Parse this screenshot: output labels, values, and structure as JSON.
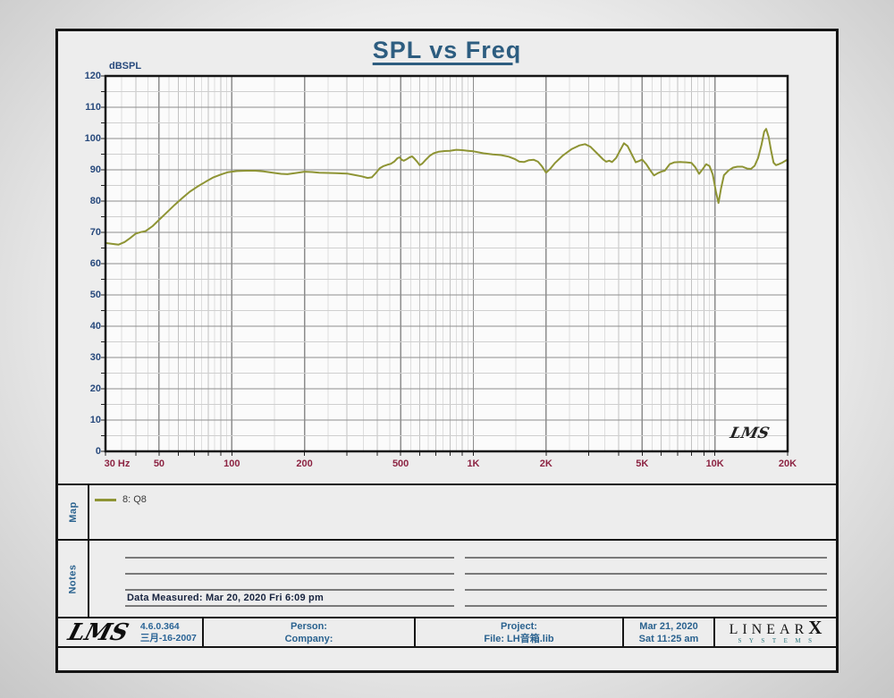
{
  "chart_data": {
    "type": "line",
    "title": "SPL vs Freq",
    "ylabel": "dBSPL",
    "x_unit": "Hz",
    "x_scale": "log",
    "xlim": [
      30,
      20000
    ],
    "ylim": [
      0,
      120
    ],
    "grid": "on",
    "yticks": [
      120,
      110,
      100,
      90,
      80,
      70,
      60,
      50,
      40,
      30,
      20,
      10,
      0
    ],
    "xticks": [
      {
        "f": 30,
        "label": "30 Hz",
        "dx": 13
      },
      {
        "f": 50,
        "label": "50"
      },
      {
        "f": 100,
        "label": "100"
      },
      {
        "f": 200,
        "label": "200"
      },
      {
        "f": 500,
        "label": "500"
      },
      {
        "f": 1000,
        "label": "1K"
      },
      {
        "f": 2000,
        "label": "2K"
      },
      {
        "f": 5000,
        "label": "5K"
      },
      {
        "f": 10000,
        "label": "10K"
      },
      {
        "f": 20000,
        "label": "20K"
      }
    ],
    "signature": "LMS",
    "series": [
      {
        "name": "8: Q8",
        "color": "#8e9434",
        "points": [
          [
            30,
            66.6
          ],
          [
            32,
            66.3
          ],
          [
            34,
            66.1
          ],
          [
            36,
            66.9
          ],
          [
            38,
            68.2
          ],
          [
            40,
            69.6
          ],
          [
            42,
            70.1
          ],
          [
            44,
            70.4
          ],
          [
            47,
            72.0
          ],
          [
            50,
            74.0
          ],
          [
            54,
            76.5
          ],
          [
            58,
            78.8
          ],
          [
            62,
            80.8
          ],
          [
            67,
            83.0
          ],
          [
            72,
            84.6
          ],
          [
            78,
            86.2
          ],
          [
            84,
            87.6
          ],
          [
            90,
            88.5
          ],
          [
            96,
            89.2
          ],
          [
            105,
            89.6
          ],
          [
            115,
            89.7
          ],
          [
            125,
            89.7
          ],
          [
            135,
            89.5
          ],
          [
            150,
            89.0
          ],
          [
            160,
            88.7
          ],
          [
            170,
            88.6
          ],
          [
            185,
            89.0
          ],
          [
            200,
            89.4
          ],
          [
            215,
            89.3
          ],
          [
            230,
            89.1
          ],
          [
            250,
            89.0
          ],
          [
            270,
            88.9
          ],
          [
            300,
            88.8
          ],
          [
            320,
            88.4
          ],
          [
            345,
            87.9
          ],
          [
            365,
            87.4
          ],
          [
            380,
            87.6
          ],
          [
            395,
            89.0
          ],
          [
            410,
            90.5
          ],
          [
            425,
            91.2
          ],
          [
            440,
            91.6
          ],
          [
            455,
            91.9
          ],
          [
            470,
            92.6
          ],
          [
            485,
            93.7
          ],
          [
            495,
            94.0
          ],
          [
            505,
            93.2
          ],
          [
            515,
            92.9
          ],
          [
            530,
            93.4
          ],
          [
            545,
            94.0
          ],
          [
            558,
            94.3
          ],
          [
            570,
            93.6
          ],
          [
            585,
            92.6
          ],
          [
            600,
            91.5
          ],
          [
            615,
            92.0
          ],
          [
            635,
            93.2
          ],
          [
            660,
            94.5
          ],
          [
            685,
            95.3
          ],
          [
            720,
            95.8
          ],
          [
            760,
            96.0
          ],
          [
            800,
            96.1
          ],
          [
            850,
            96.4
          ],
          [
            900,
            96.3
          ],
          [
            950,
            96.1
          ],
          [
            1000,
            95.9
          ],
          [
            1100,
            95.3
          ],
          [
            1200,
            94.9
          ],
          [
            1300,
            94.7
          ],
          [
            1400,
            94.2
          ],
          [
            1480,
            93.5
          ],
          [
            1550,
            92.6
          ],
          [
            1620,
            92.5
          ],
          [
            1700,
            93.1
          ],
          [
            1780,
            93.2
          ],
          [
            1850,
            92.6
          ],
          [
            1920,
            91.2
          ],
          [
            2000,
            89.1
          ],
          [
            2080,
            90.3
          ],
          [
            2180,
            92.2
          ],
          [
            2350,
            94.6
          ],
          [
            2550,
            96.6
          ],
          [
            2750,
            97.8
          ],
          [
            2900,
            98.2
          ],
          [
            3050,
            97.4
          ],
          [
            3250,
            95.3
          ],
          [
            3450,
            93.3
          ],
          [
            3550,
            92.6
          ],
          [
            3650,
            92.9
          ],
          [
            3750,
            92.5
          ],
          [
            3900,
            93.8
          ],
          [
            4050,
            96.2
          ],
          [
            4200,
            98.5
          ],
          [
            4350,
            97.6
          ],
          [
            4550,
            94.6
          ],
          [
            4700,
            92.4
          ],
          [
            4850,
            92.8
          ],
          [
            5000,
            93.3
          ],
          [
            5200,
            91.8
          ],
          [
            5400,
            89.8
          ],
          [
            5600,
            88.2
          ],
          [
            5800,
            88.9
          ],
          [
            6000,
            89.4
          ],
          [
            6200,
            89.7
          ],
          [
            6500,
            91.8
          ],
          [
            6800,
            92.4
          ],
          [
            7200,
            92.5
          ],
          [
            7600,
            92.4
          ],
          [
            8000,
            92.2
          ],
          [
            8300,
            90.8
          ],
          [
            8600,
            88.7
          ],
          [
            8900,
            90.2
          ],
          [
            9200,
            91.8
          ],
          [
            9500,
            91.2
          ],
          [
            9800,
            88.5
          ],
          [
            10100,
            83.0
          ],
          [
            10350,
            79.4
          ],
          [
            10600,
            84.0
          ],
          [
            10900,
            88.3
          ],
          [
            11400,
            89.8
          ],
          [
            11900,
            90.7
          ],
          [
            12400,
            91.0
          ],
          [
            13000,
            91.0
          ],
          [
            13600,
            90.4
          ],
          [
            14100,
            90.3
          ],
          [
            14600,
            91.3
          ],
          [
            15100,
            93.8
          ],
          [
            15600,
            98.0
          ],
          [
            16000,
            102.2
          ],
          [
            16300,
            103.1
          ],
          [
            16700,
            100.5
          ],
          [
            17100,
            96.0
          ],
          [
            17500,
            92.3
          ],
          [
            17900,
            91.5
          ],
          [
            18400,
            91.8
          ],
          [
            19000,
            92.3
          ],
          [
            19500,
            92.8
          ],
          [
            20000,
            93.3
          ]
        ]
      }
    ]
  },
  "map": {
    "label": "Map"
  },
  "notes": {
    "label": "Notes",
    "data_measured": "Data Measured: Mar 20, 2020  Fri  6:09 pm"
  },
  "footer": {
    "logo": "LMS",
    "version": "4.6.0.364",
    "version_date": "三月-16-2007",
    "person_label": "Person:",
    "company_label": "Company:",
    "project_label": "Project:",
    "file_label": "File: LH音箱.lib",
    "date": "Mar 21, 2020",
    "time": "Sat 11:25 am",
    "brand_main": "LINEAR",
    "brand_x": "X",
    "brand_sub": "SYSTEMS"
  }
}
